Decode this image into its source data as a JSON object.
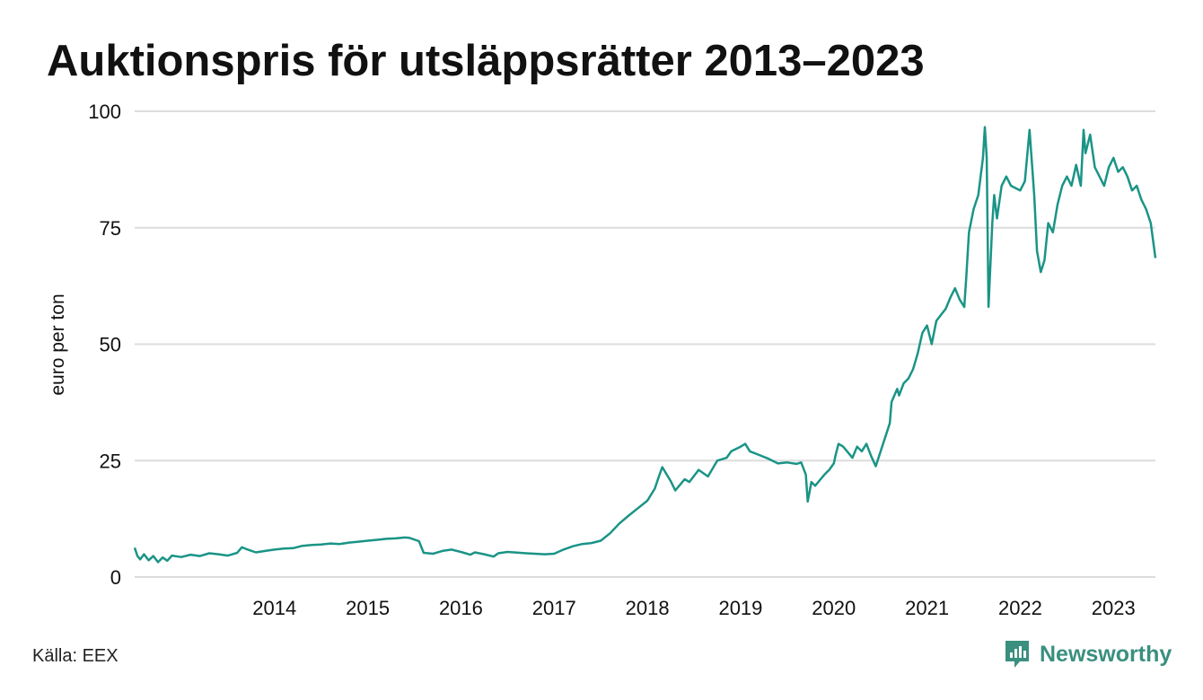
{
  "header": {
    "title": "Auktionspris för utsläppsrätter 2013–2023"
  },
  "footer": {
    "source": "Källa: EEX",
    "brand": "Newsworthy"
  },
  "colors": {
    "line": "#1a9486",
    "grid": "#dcdcdc",
    "brand": "#3a8f7f"
  },
  "chart_data": {
    "type": "line",
    "title": "Auktionspris för utsläppsrätter 2013–2023",
    "xlabel": "",
    "ylabel": "euro per ton",
    "xlim": [
      2013.0,
      2023.95
    ],
    "ylim": [
      0,
      100
    ],
    "yticks": [
      0,
      25,
      50,
      75,
      100
    ],
    "xticks": [
      2014,
      2015,
      2016,
      2017,
      2018,
      2019,
      2020,
      2021,
      2022,
      2023
    ],
    "grid": true,
    "legend": "none",
    "series": [
      {
        "x": [
          2013.0,
          2013.03,
          2013.06,
          2013.1,
          2013.15,
          2013.2,
          2013.25,
          2013.3,
          2013.35,
          2013.4,
          2013.5,
          2013.6,
          2013.7,
          2013.8,
          2013.9,
          2014.0,
          2014.1,
          2014.15,
          2014.2,
          2014.3,
          2014.4,
          2014.5,
          2014.6,
          2014.7,
          2014.8,
          2014.9,
          2015.0,
          2015.1,
          2015.2,
          2015.3,
          2015.4,
          2015.5,
          2015.6,
          2015.7,
          2015.8,
          2015.9,
          2015.95,
          2016.05,
          2016.1,
          2016.2,
          2016.3,
          2016.4,
          2016.5,
          2016.6,
          2016.65,
          2016.75,
          2016.85,
          2016.9,
          2017.0,
          2017.2,
          2017.4,
          2017.5,
          2017.6,
          2017.7,
          2017.8,
          2017.9,
          2018.0,
          2018.1,
          2018.2,
          2018.3,
          2018.4,
          2018.5,
          2018.58,
          2018.62,
          2018.66,
          2018.75,
          2018.8,
          2018.9,
          2018.95,
          2019.05,
          2019.15,
          2019.25,
          2019.35,
          2019.4,
          2019.5,
          2019.55,
          2019.6,
          2019.7,
          2019.8,
          2019.9,
          2020.0,
          2020.1,
          2020.15,
          2020.2,
          2020.22,
          2020.26,
          2020.3,
          2020.35,
          2020.4,
          2020.45,
          2020.5,
          2020.52,
          2020.55,
          2020.6,
          2020.7,
          2020.75,
          2020.8,
          2020.85,
          2020.9,
          2020.95,
          2021.1,
          2021.12,
          2021.18,
          2021.2,
          2021.25,
          2021.3,
          2021.35,
          2021.4,
          2021.45,
          2021.5,
          2021.55,
          2021.6,
          2021.7,
          2021.75,
          2021.8,
          2021.85,
          2021.9,
          2021.92,
          2021.95,
          2022.0,
          2022.05,
          2022.1,
          2022.12,
          2022.14,
          2022.16,
          2022.2,
          2022.22,
          2022.25,
          2022.3,
          2022.35,
          2022.4,
          2022.5,
          2022.55,
          2022.6,
          2022.65,
          2022.68,
          2022.72,
          2022.76,
          2022.8,
          2022.85,
          2022.9,
          2022.95,
          2023.0,
          2023.05,
          2023.1,
          2023.15,
          2023.18,
          2023.2,
          2023.25,
          2023.3,
          2023.35,
          2023.4,
          2023.45,
          2023.5,
          2023.55,
          2023.6,
          2023.65,
          2023.7,
          2023.75,
          2023.8,
          2023.85,
          2023.9,
          2023.95
        ],
        "y": [
          6.3,
          4.5,
          3.8,
          4.9,
          3.6,
          4.5,
          3.2,
          4.2,
          3.5,
          4.6,
          4.3,
          4.8,
          4.5,
          5.1,
          4.9,
          4.6,
          5.2,
          6.4,
          6.0,
          5.3,
          5.6,
          5.9,
          6.1,
          6.2,
          6.7,
          6.9,
          7.0,
          7.2,
          7.1,
          7.4,
          7.6,
          7.8,
          8.0,
          8.2,
          8.3,
          8.5,
          8.4,
          7.7,
          5.2,
          5.0,
          5.6,
          5.9,
          5.4,
          4.8,
          5.3,
          4.9,
          4.4,
          5.1,
          5.4,
          5.1,
          4.9,
          5.0,
          5.9,
          6.6,
          7.1,
          7.3,
          7.8,
          9.4,
          11.5,
          13.2,
          14.8,
          16.4,
          19.0,
          21.4,
          23.6,
          20.6,
          18.6,
          21.0,
          20.4,
          23.0,
          21.6,
          25.0,
          25.6,
          27.0,
          28.0,
          28.6,
          27.0,
          26.2,
          25.4,
          24.4,
          24.6,
          24.3,
          24.6,
          22.0,
          16.2,
          20.4,
          19.6,
          20.8,
          22.0,
          23.0,
          24.4,
          26.2,
          28.6,
          28.0,
          25.6,
          28.0,
          27.0,
          28.6,
          26.0,
          23.8,
          33.0,
          37.6,
          40.4,
          39.0,
          41.6,
          42.6,
          44.6,
          48.0,
          52.4,
          54.0,
          50.0,
          55.0,
          57.6,
          60.0,
          62.0,
          59.6,
          58.0,
          64.0,
          74.0,
          79.0,
          82.0,
          90.0,
          96.6,
          90.0,
          58.0,
          76.0,
          82.0,
          77.0,
          84.0,
          86.0,
          84.0,
          83.0,
          85.0,
          96.0,
          82.0,
          70.0,
          65.5,
          68.0,
          76.0,
          74.0,
          80.0,
          84.0,
          86.0,
          84.0,
          88.5,
          84.0,
          96.0,
          91.0,
          95.0,
          88.0,
          86.0,
          84.0,
          88.0,
          90.0,
          87.0,
          88.0,
          86.0,
          83.0,
          84.0,
          81.0,
          79.0,
          76.0,
          68.5
        ]
      }
    ]
  }
}
